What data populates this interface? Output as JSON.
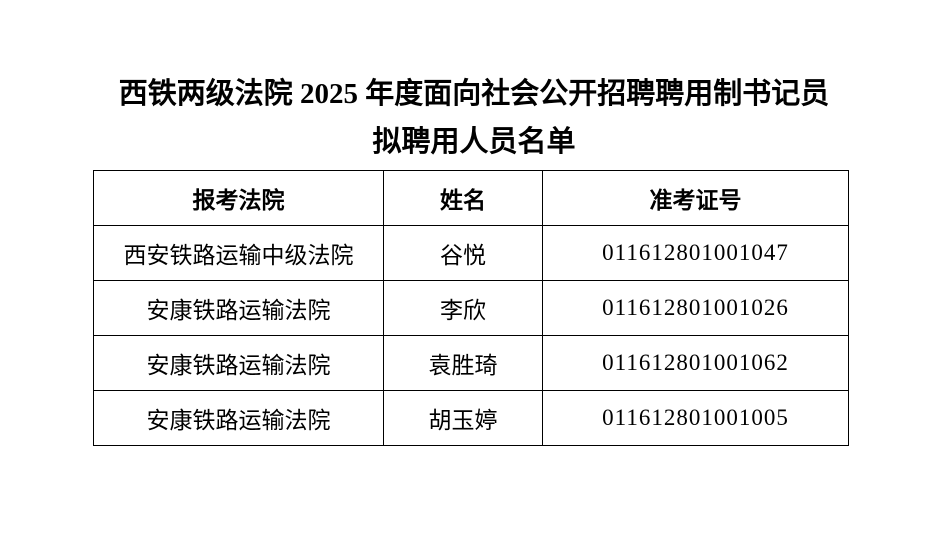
{
  "document": {
    "title_line1": "西铁两级法院 2025 年度面向社会公开招聘聘用制书记员",
    "title_line2": "拟聘用人员名单"
  },
  "table": {
    "headers": [
      "报考法院",
      "姓名",
      "准考证号"
    ],
    "rows": [
      [
        "西安铁路运输中级法院",
        "谷悦",
        "011612801001047"
      ],
      [
        "安康铁路运输法院",
        "李欣",
        "011612801001026"
      ],
      [
        "安康铁路运输法院",
        "袁胜琦",
        "011612801001062"
      ],
      [
        "安康铁路运输法院",
        "胡玉婷",
        "011612801001005"
      ]
    ]
  },
  "colors": {
    "background": "#ffffff",
    "text": "#000000",
    "border": "#000000"
  }
}
